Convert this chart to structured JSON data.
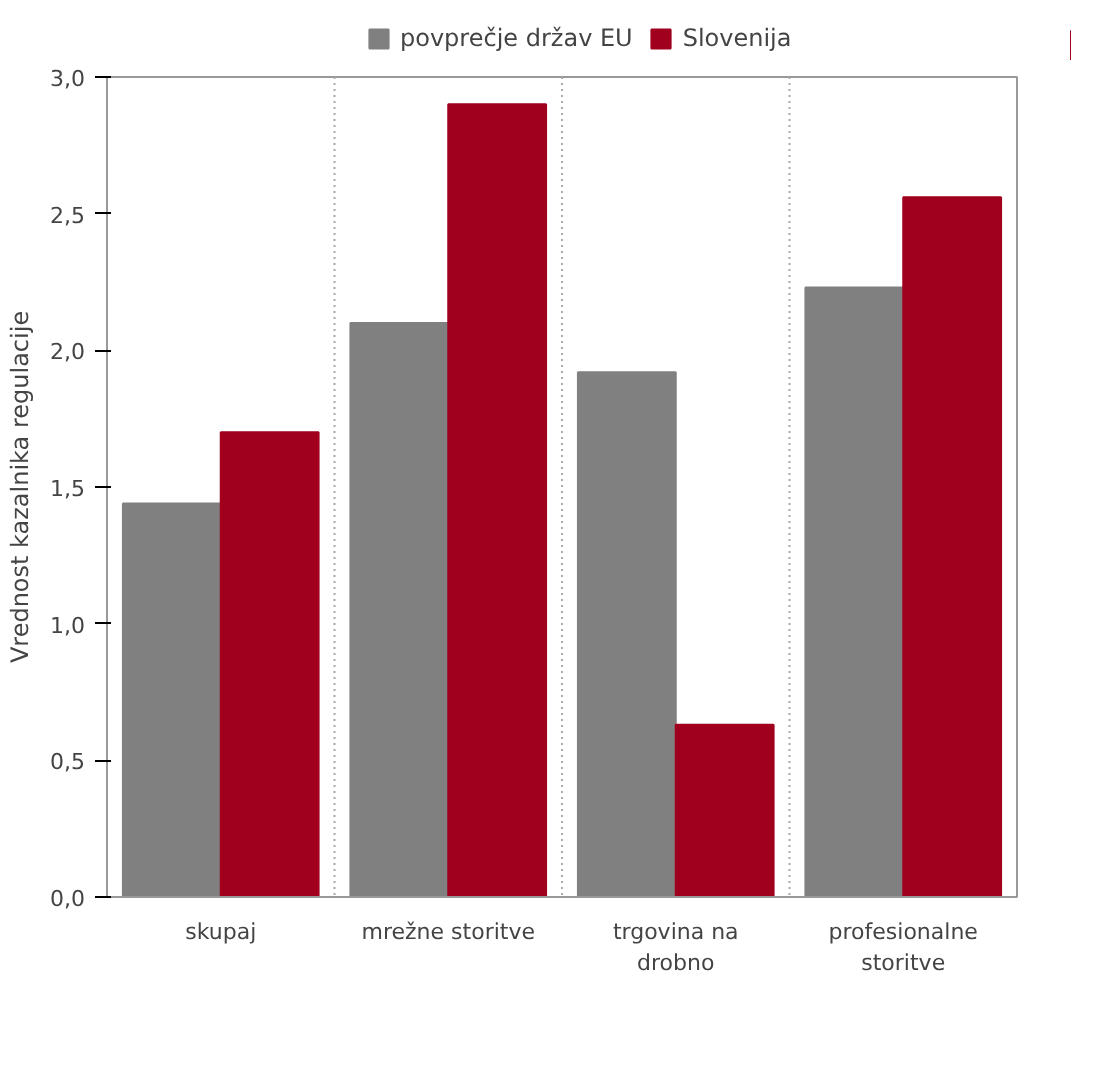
{
  "chart_data": {
    "type": "bar",
    "ylabel": "Vrednost kazalnika regulacije",
    "categories": [
      "skupaj",
      "mrežne storitve",
      "trgovina na\ndrobno",
      "profesionalne\nstoritve"
    ],
    "series": [
      {
        "name": "povprečje držav EU",
        "color": "#808080",
        "values": [
          1.44,
          2.1,
          1.92,
          2.23
        ]
      },
      {
        "name": "Slovenija",
        "color": "#a0001e",
        "values": [
          1.7,
          2.9,
          0.63,
          2.56
        ]
      }
    ],
    "ylim": [
      0,
      3
    ],
    "yticks": [
      {
        "value": 0,
        "label": "0,0"
      },
      {
        "value": 0.5,
        "label": "0,5"
      },
      {
        "value": 1,
        "label": "1,0"
      },
      {
        "value": 1.5,
        "label": "1,5"
      },
      {
        "value": 2,
        "label": "2,0"
      },
      {
        "value": 2.5,
        "label": "2,5"
      },
      {
        "value": 3,
        "label": "3,0"
      }
    ],
    "grid": "x",
    "legend": "top"
  }
}
